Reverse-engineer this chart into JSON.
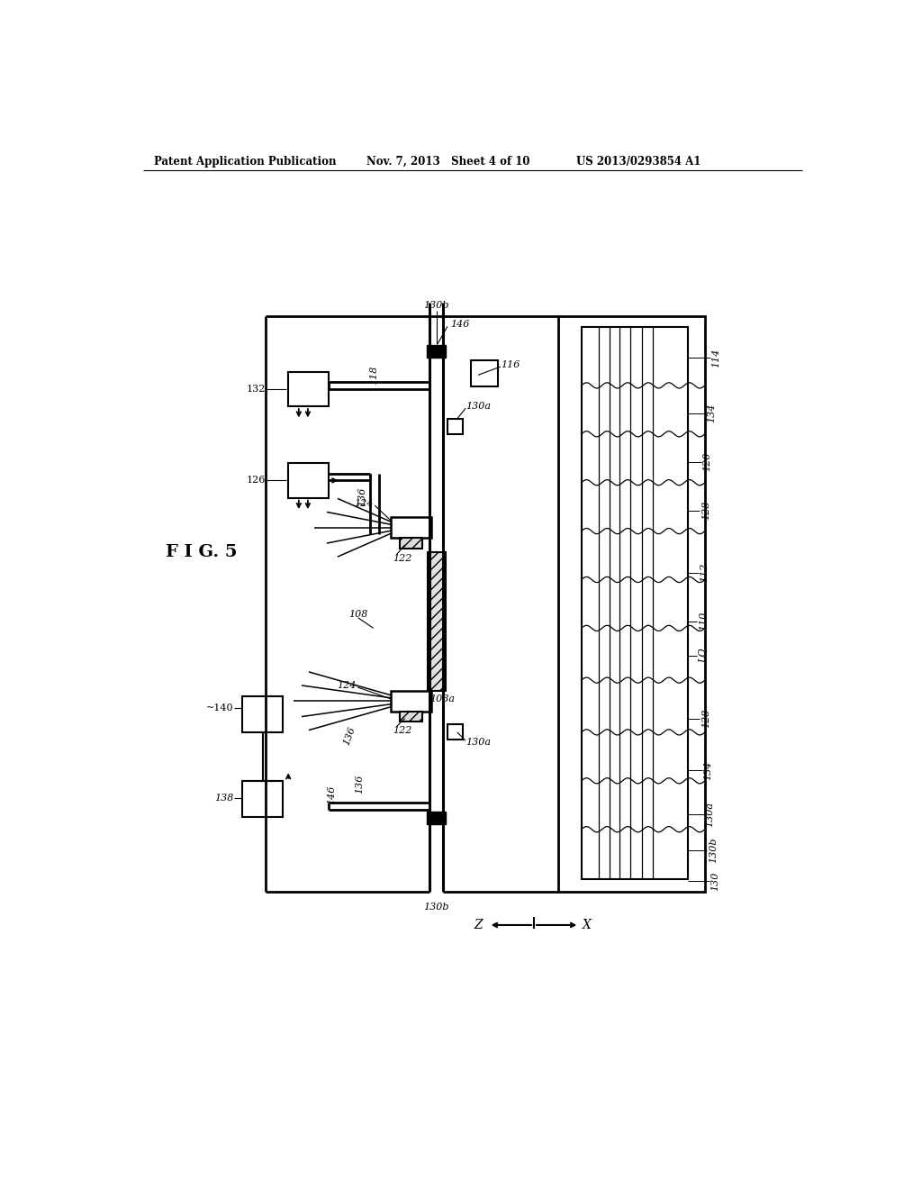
{
  "bg_color": "#ffffff",
  "header_left": "Patent Application Publication",
  "header_mid": "Nov. 7, 2013   Sheet 4 of 10",
  "header_right": "US 2013/0293854 A1",
  "fig_label": "F I G. 5"
}
